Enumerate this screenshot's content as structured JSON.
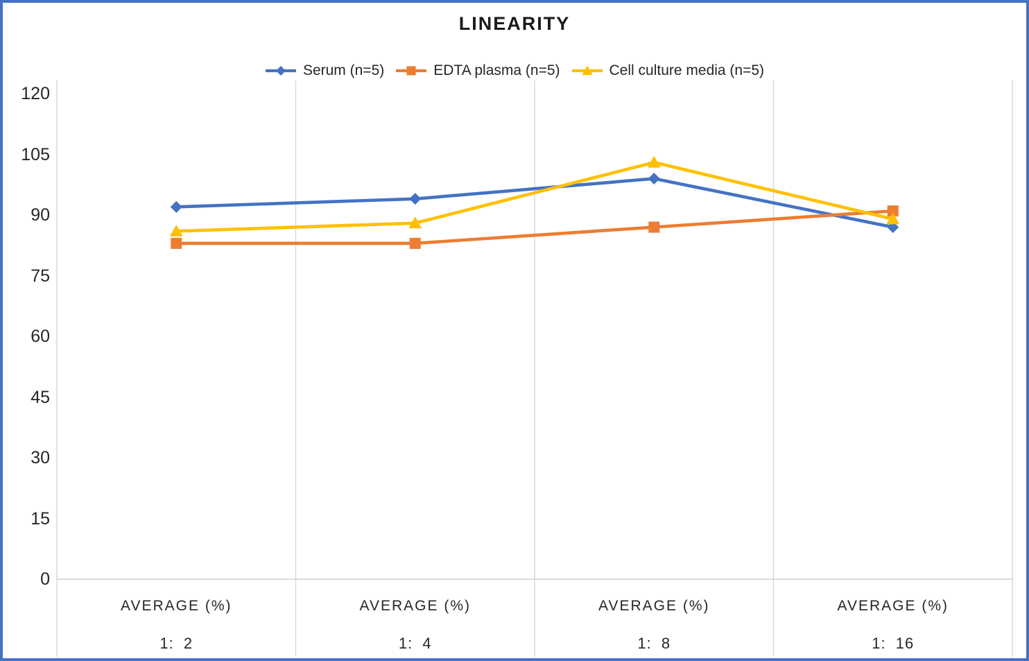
{
  "frame": {
    "border_color": "#4472C4",
    "background": "#ffffff",
    "gridline_color": "#d9d9d9",
    "axis_line_color": "#cfcfcf"
  },
  "chart_data": {
    "type": "line",
    "title": "LINEARITY",
    "category_header": "AVERAGE (%)",
    "categories": [
      "1:  2",
      "1:  4",
      "1:  8",
      "1:  16"
    ],
    "series": [
      {
        "name": "Serum (n=5)",
        "marker": "diamond",
        "color": "#4472C4",
        "values": [
          92,
          94,
          99,
          87
        ]
      },
      {
        "name": "EDTA plasma (n=5)",
        "marker": "square",
        "color": "#ED7D31",
        "values": [
          83,
          83,
          87,
          91
        ]
      },
      {
        "name": "Cell culture media (n=5)",
        "marker": "triangle",
        "color": "#FFC000",
        "values": [
          86,
          88,
          103,
          89
        ]
      }
    ],
    "ylim": [
      0,
      120
    ],
    "yticks": [
      120,
      105,
      90,
      75,
      60,
      45,
      30,
      15,
      0
    ],
    "grid": "vertical-only",
    "legend_position": "top",
    "text_color": "#262626"
  }
}
